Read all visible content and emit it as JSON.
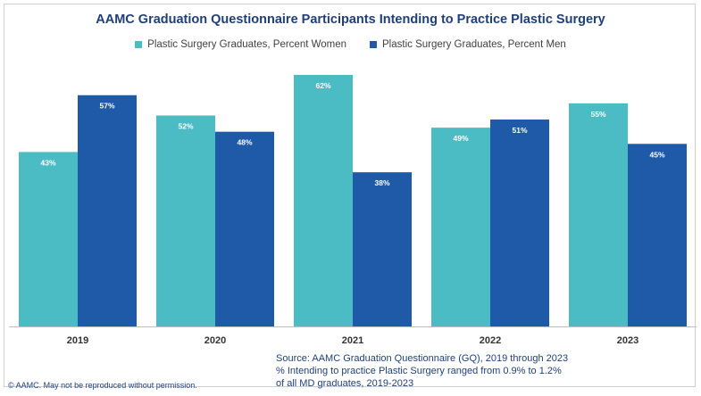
{
  "chart_data": {
    "type": "bar",
    "title": "AAMC Graduation Questionnaire Participants Intending to Practice Plastic Surgery",
    "categories": [
      "2019",
      "2020",
      "2021",
      "2022",
      "2023"
    ],
    "series": [
      {
        "name": "Plastic Surgery Graduates, Percent Women",
        "values": [
          43,
          52,
          62,
          49,
          55
        ],
        "labels": [
          "43%",
          "52%",
          "62%",
          "49%",
          "55%"
        ],
        "color": "#4cbcc4"
      },
      {
        "name": "Plastic Surgery Graduates, Percent Men",
        "values": [
          57,
          48,
          38,
          51,
          45
        ],
        "labels": [
          "57%",
          "48%",
          "38%",
          "51%",
          "45%"
        ],
        "color": "#1f5aa8"
      }
    ],
    "ylim": [
      0,
      62
    ],
    "legend_position": "top",
    "grid": false
  },
  "source_lines": [
    "Source: AAMC Graduation Questionnaire (GQ), 2019 through 2023",
    "% Intending to practice Plastic Surgery ranged from 0.9% to 1.2%",
    "of all MD graduates, 2019-2023"
  ],
  "copyright": "© AAMC. May not be reproduced without permission."
}
